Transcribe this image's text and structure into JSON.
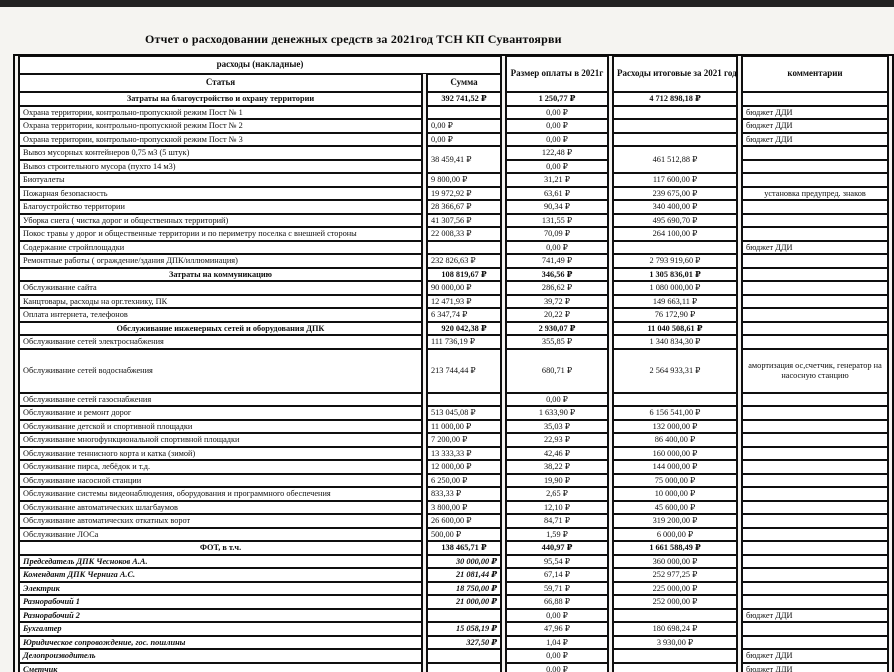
{
  "title": "Отчет о расходовании денежных средств за 2021год ТСН КП Сувантоярви",
  "table": {
    "header": {
      "group": "расходы (накладные)",
      "col_article": "Статья",
      "col_sum": "Сумма",
      "col_rate": "Размер оплаты в 2021г",
      "col_total": "Расходы итоговые за 2021 год",
      "col_comment": "комментарии"
    },
    "rows": [
      {
        "label": "Затраты на благоустройство и охрану территории",
        "sum": "392 741,52 ₽",
        "rate": "1 250,77 ₽",
        "total": "4 712 898,18 ₽",
        "comment": "",
        "style": "section"
      },
      {
        "label": "Охрана территории, контрольно-пропускной режим Пост № 1",
        "sum": "",
        "rate": "0,00 ₽",
        "total": "",
        "comment": "бюджет ДДИ",
        "style": ""
      },
      {
        "label": "Охрана территории, контрольно-пропускной режим Пост № 2",
        "sum": "0,00 ₽",
        "rate": "0,00 ₽",
        "total": "",
        "comment": "бюджет ДДИ",
        "style": ""
      },
      {
        "label": "Охрана территории, контрольно-пропускной режим Пост № 3",
        "sum": "0,00 ₽",
        "rate": "0,00 ₽",
        "total": "",
        "comment": "бюджет ДДИ",
        "style": ""
      },
      {
        "label": "Вывоз мусорных контейнеров 0,75 м3 (5 штук)",
        "sum": "38 459,41 ₽",
        "sum_rowspan": 2,
        "rate": "122,48 ₽",
        "total": "461 512,88 ₽",
        "total_rowspan": 2,
        "comment": "",
        "style": ""
      },
      {
        "label": "Вывоз строительного мусора (пухто 14 м3)",
        "sum": null,
        "rate": "0,00 ₽",
        "total": null,
        "comment": "",
        "style": ""
      },
      {
        "label": "Биотуалеты",
        "sum": "9 800,00 ₽",
        "rate": "31,21 ₽",
        "total": "117 600,00 ₽",
        "comment": "",
        "style": ""
      },
      {
        "label": "Пожарная безопасность",
        "sum": "19 972,92 ₽",
        "rate": "63,61 ₽",
        "total": "239 675,00 ₽",
        "comment": "установка предупред. знаков",
        "comment_center": true,
        "style": ""
      },
      {
        "label": "Благоустройство территории",
        "sum": "28 366,67 ₽",
        "rate": "90,34 ₽",
        "total": "340 400,00 ₽",
        "comment": "",
        "style": ""
      },
      {
        "label": "Уборка снега ( чистка дорог и общественных территорий)",
        "sum": "41 307,56 ₽",
        "rate": "131,55 ₽",
        "total": "495 690,70 ₽",
        "comment": "",
        "style": ""
      },
      {
        "label": "Покос травы у дорог и общественные территории и по периметру поселка с внешней стороны",
        "sum": "22 008,33 ₽",
        "rate": "70,09 ₽",
        "total": "264 100,00 ₽",
        "comment": "",
        "style": ""
      },
      {
        "label": "Содержание стройплощадки",
        "sum": "",
        "rate": "0,00 ₽",
        "total": "",
        "comment": "бюджет ДДИ",
        "style": ""
      },
      {
        "label": "Ремонтные работы ( ограждение/здания ДПК/иллюминация)",
        "sum": "232 826,63 ₽",
        "rate": "741,49 ₽",
        "total": "2 793 919,60 ₽",
        "comment": "",
        "style": ""
      },
      {
        "label": "Затраты на коммуникацию",
        "sum": "108 819,67 ₽",
        "rate": "346,56 ₽",
        "total": "1 305 836,01 ₽",
        "comment": "",
        "style": "section"
      },
      {
        "label": "Обслуживание сайта",
        "sum": "90 000,00 ₽",
        "rate": "286,62 ₽",
        "total": "1 080 000,00 ₽",
        "comment": "",
        "style": ""
      },
      {
        "label": "Канцтовары, расходы на орг.технику, ПК",
        "sum": "12 471,93 ₽",
        "rate": "39,72 ₽",
        "total": "149 663,11 ₽",
        "comment": "",
        "style": ""
      },
      {
        "label": "Оплата интернета, телефонов",
        "sum": "6 347,74 ₽",
        "rate": "20,22 ₽",
        "total": "76 172,90 ₽",
        "comment": "",
        "style": ""
      },
      {
        "label": "Обслуживание инженерных сетей и оборудования ДПК",
        "sum": "920 042,38 ₽",
        "rate": "2 930,07 ₽",
        "total": "11 040 508,61 ₽",
        "comment": "",
        "style": "section"
      },
      {
        "label": "Обслуживание сетей электроснабжения",
        "sum": "111 736,19 ₽",
        "rate": "355,85 ₽",
        "total": "1 340 834,30 ₽",
        "comment": "",
        "style": ""
      },
      {
        "label": "Обслуживание сетей водоснабжения",
        "sum": "213 744,44 ₽",
        "rate": "680,71 ₽",
        "total": "2 564 933,31 ₽",
        "comment": "амортизация ос,счетчик, генератор на насосную станцию",
        "comment_center": true,
        "style": "",
        "tall": true
      },
      {
        "label": "Обслуживание сетей газоснабжения",
        "sum": "",
        "rate": "0,00 ₽",
        "total": "",
        "comment": "",
        "style": ""
      },
      {
        "label": "Обслуживание и ремонт дорог",
        "sum": "513 045,08 ₽",
        "rate": "1 633,90 ₽",
        "total": "6 156 541,00 ₽",
        "comment": "",
        "style": ""
      },
      {
        "label": "Обслуживание  детской и спортивной площадки",
        "sum": "11 000,00 ₽",
        "rate": "35,03 ₽",
        "total": "132 000,00 ₽",
        "comment": "",
        "style": ""
      },
      {
        "label": "Обслуживание многофункциональной спортивной площадки",
        "sum": "7 200,00 ₽",
        "rate": "22,93 ₽",
        "total": "86 400,00 ₽",
        "comment": "",
        "style": ""
      },
      {
        "label": "Обслуживание теннисного корта и катка (зимой)",
        "sum": "13 333,33 ₽",
        "rate": "42,46 ₽",
        "total": "160 000,00 ₽",
        "comment": "",
        "style": ""
      },
      {
        "label": "Обслуживание пирса, лебёдок и т.д.",
        "sum": "12 000,00 ₽",
        "rate": "38,22 ₽",
        "total": "144 000,00 ₽",
        "comment": "",
        "style": ""
      },
      {
        "label": "Обслуживание насосной станции",
        "sum": "6 250,00 ₽",
        "rate": "19,90 ₽",
        "total": "75 000,00 ₽",
        "comment": "",
        "style": ""
      },
      {
        "label": "Обслуживание системы видеонаблюдения, оборудования и программного обеспечения",
        "sum": "833,33 ₽",
        "rate": "2,65 ₽",
        "total": "10 000,00 ₽",
        "comment": "",
        "style": ""
      },
      {
        "label": "Обслуживание автоматических шлагбаумов",
        "sum": "3 800,00 ₽",
        "rate": "12,10 ₽",
        "total": "45 600,00 ₽",
        "comment": "",
        "style": ""
      },
      {
        "label": "Обслуживание автоматических откатных ворот",
        "sum": "26 600,00 ₽",
        "rate": "84,71 ₽",
        "total": "319 200,00 ₽",
        "comment": "",
        "style": ""
      },
      {
        "label": "Обслуживание ЛОСа",
        "sum": "500,00 ₽",
        "rate": "1,59 ₽",
        "total": "6 000,00 ₽",
        "comment": "",
        "style": ""
      },
      {
        "label": "ФОТ, в т.ч.",
        "sum": "138 465,71 ₽",
        "rate": "440,97 ₽",
        "total": "1 661 588,49 ₽",
        "comment": "",
        "style": "section"
      },
      {
        "label": "Председатель ДПК Чесноков А.А.",
        "sum": "30 000,00 ₽",
        "rate": "95,54 ₽",
        "total": "360 000,00 ₽",
        "comment": "",
        "style": "italic"
      },
      {
        "label": "Комендант ДПК Чернига А.С.",
        "sum": "21 081,44 ₽",
        "rate": "67,14 ₽",
        "total": "252 977,25 ₽",
        "comment": "",
        "style": "italic"
      },
      {
        "label": "Электрик",
        "sum": "18 750,00 ₽",
        "rate": "59,71 ₽",
        "total": "225 000,00 ₽",
        "comment": "",
        "style": "italic"
      },
      {
        "label": "Разнорабочий 1",
        "sum": "21 000,00 ₽",
        "rate": "66,88 ₽",
        "total": "252 000,00 ₽",
        "comment": "",
        "style": "italic"
      },
      {
        "label": "Разнорабочий 2",
        "sum": "",
        "rate": "0,00 ₽",
        "total": "",
        "comment": "бюджет ДДИ",
        "style": "italic"
      },
      {
        "label": "Бухгалтер",
        "sum": "15 058,19 ₽",
        "rate": "47,96 ₽",
        "total": "180 698,24 ₽",
        "comment": "",
        "style": "italic"
      },
      {
        "label": "Юридическое сопровождение, гос. пошлины",
        "sum": "327,50 ₽",
        "rate": "1,04 ₽",
        "total": "3 930,00 ₽",
        "comment": "",
        "style": "italic"
      },
      {
        "label": "Делопроизводитель",
        "sum": "",
        "rate": "0,00 ₽",
        "total": "",
        "comment": "бюджет ДДИ",
        "style": "italic"
      },
      {
        "label": "Сметчик",
        "sum": "",
        "rate": "0,00 ₽",
        "total": "",
        "comment": "бюджет ДДИ",
        "style": "italic"
      },
      {
        "label": "",
        "sum": "",
        "rate": "",
        "total": "",
        "comment": "",
        "style": ""
      }
    ]
  }
}
